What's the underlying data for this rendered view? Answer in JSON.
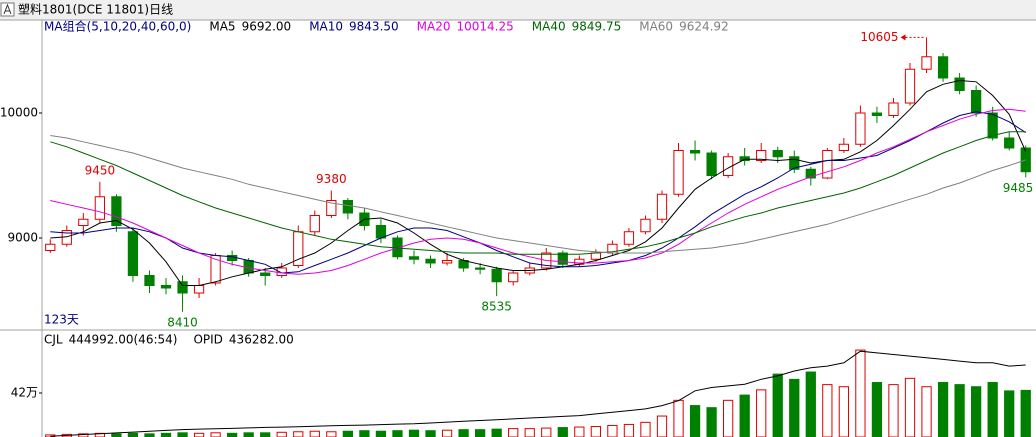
{
  "window_title": "塑料1801(DCE 11801)日线",
  "chart_data": [
    {
      "type": "candlestick",
      "legend_title": "MA组合(5,10,20,40,60,0)",
      "period_label": "123天",
      "ylim": [
        8280,
        10744
      ],
      "yticks": [
        9000,
        10000
      ],
      "up_color": "#e00000",
      "down_color": "#008000",
      "candles": [
        [
          8900,
          8990,
          8880,
          8950
        ],
        [
          8950,
          9100,
          8930,
          9060
        ],
        [
          9100,
          9200,
          9020,
          9150
        ],
        [
          9150,
          9450,
          9120,
          9330
        ],
        [
          9330,
          9350,
          9050,
          9100
        ],
        [
          9050,
          9080,
          8650,
          8700
        ],
        [
          8700,
          8740,
          8560,
          8620
        ],
        [
          8620,
          8680,
          8550,
          8600
        ],
        [
          8650,
          8700,
          8410,
          8560
        ],
        [
          8560,
          8680,
          8520,
          8620
        ],
        [
          8640,
          8880,
          8620,
          8860
        ],
        [
          8860,
          8900,
          8780,
          8820
        ],
        [
          8820,
          8840,
          8690,
          8720
        ],
        [
          8720,
          8760,
          8620,
          8700
        ],
        [
          8700,
          8800,
          8680,
          8760
        ],
        [
          8780,
          9100,
          8760,
          9050
        ],
        [
          9050,
          9220,
          9020,
          9180
        ],
        [
          9180,
          9380,
          9160,
          9300
        ],
        [
          9300,
          9320,
          9150,
          9200
        ],
        [
          9200,
          9240,
          9060,
          9100
        ],
        [
          9100,
          9150,
          8960,
          9000
        ],
        [
          9000,
          9020,
          8830,
          8850
        ],
        [
          8850,
          8900,
          8790,
          8830
        ],
        [
          8830,
          8860,
          8760,
          8800
        ],
        [
          8800,
          8880,
          8780,
          8820
        ],
        [
          8820,
          8840,
          8730,
          8760
        ],
        [
          8760,
          8800,
          8710,
          8750
        ],
        [
          8750,
          8770,
          8535,
          8650
        ],
        [
          8650,
          8740,
          8620,
          8720
        ],
        [
          8720,
          8800,
          8700,
          8760
        ],
        [
          8760,
          8920,
          8740,
          8880
        ],
        [
          8880,
          8900,
          8760,
          8790
        ],
        [
          8790,
          8860,
          8770,
          8830
        ],
        [
          8830,
          8910,
          8810,
          8880
        ],
        [
          8880,
          8980,
          8860,
          8950
        ],
        [
          8950,
          9080,
          8930,
          9050
        ],
        [
          9050,
          9180,
          9030,
          9150
        ],
        [
          9150,
          9380,
          9120,
          9350
        ],
        [
          9350,
          9760,
          9330,
          9700
        ],
        [
          9700,
          9780,
          9620,
          9680
        ],
        [
          9680,
          9700,
          9470,
          9500
        ],
        [
          9500,
          9680,
          9480,
          9650
        ],
        [
          9650,
          9720,
          9580,
          9620
        ],
        [
          9620,
          9760,
          9600,
          9700
        ],
        [
          9700,
          9730,
          9600,
          9650
        ],
        [
          9650,
          9700,
          9520,
          9550
        ],
        [
          9550,
          9570,
          9420,
          9480
        ],
        [
          9480,
          9720,
          9470,
          9700
        ],
        [
          9700,
          9800,
          9680,
          9750
        ],
        [
          9750,
          10060,
          9730,
          10000
        ],
        [
          10000,
          10050,
          9920,
          9980
        ],
        [
          9980,
          10120,
          9960,
          10080
        ],
        [
          10080,
          10400,
          10060,
          10350
        ],
        [
          10350,
          10605,
          10320,
          10450
        ],
        [
          10450,
          10480,
          10250,
          10280
        ],
        [
          10280,
          10320,
          10150,
          10180
        ],
        [
          10180,
          10220,
          9970,
          10000
        ],
        [
          10000,
          10050,
          9780,
          9800
        ],
        [
          9800,
          9850,
          9700,
          9720
        ],
        [
          9720,
          9740,
          9485,
          9530
        ]
      ],
      "series": [
        {
          "name": "MA5",
          "label": "9692.00",
          "color": "#000000",
          "values": [
            9000,
            9010,
            9050,
            9120,
            9140,
            9070,
            8960,
            8810,
            8620,
            8620,
            8650,
            8690,
            8720,
            8750,
            8770,
            8830,
            8880,
            8960,
            9060,
            9150,
            9160,
            9120,
            9040,
            8950,
            8870,
            8820,
            8790,
            8760,
            8740,
            8740,
            8750,
            8770,
            8790,
            8820,
            8860,
            8900,
            8970,
            9080,
            9240,
            9390,
            9480,
            9560,
            9630,
            9630,
            9620,
            9630,
            9600,
            9620,
            9630,
            9690,
            9780,
            9900,
            10030,
            10170,
            10230,
            10260,
            10250,
            10140,
            9990,
            9692
          ]
        },
        {
          "name": "MA10",
          "label": "9843.50",
          "color": "#000080",
          "values": [
            9050,
            9040,
            9040,
            9060,
            9080,
            9080,
            9050,
            9000,
            8920,
            8880,
            8860,
            8850,
            8820,
            8790,
            8720,
            8730,
            8780,
            8830,
            8880,
            8940,
            9000,
            9050,
            9080,
            9080,
            9060,
            9010,
            8960,
            8900,
            8850,
            8800,
            8780,
            8770,
            8770,
            8780,
            8800,
            8820,
            8860,
            8920,
            9000,
            9090,
            9190,
            9270,
            9350,
            9410,
            9480,
            9560,
            9590,
            9620,
            9620,
            9640,
            9660,
            9720,
            9780,
            9850,
            9920,
            9980,
            10010,
            9990,
            9930,
            9843.5
          ]
        },
        {
          "name": "MA20",
          "label": "10014.25",
          "color": "#e000e0",
          "values": [
            9300,
            9270,
            9240,
            9210,
            9170,
            9120,
            9060,
            9000,
            8940,
            8880,
            8830,
            8790,
            8760,
            8740,
            8720,
            8710,
            8720,
            8740,
            8780,
            8830,
            8880,
            8920,
            8960,
            8990,
            9000,
            8990,
            8960,
            8920,
            8880,
            8850,
            8820,
            8810,
            8800,
            8800,
            8810,
            8820,
            8840,
            8880,
            8950,
            9040,
            9120,
            9200,
            9270,
            9330,
            9390,
            9440,
            9490,
            9530,
            9570,
            9620,
            9680,
            9730,
            9790,
            9850,
            9900,
            9950,
            9990,
            10020,
            10030,
            10014.25
          ]
        },
        {
          "name": "MA40",
          "label": "9849.75",
          "color": "#006400",
          "values": [
            9770,
            9730,
            9680,
            9630,
            9580,
            9520,
            9460,
            9400,
            9340,
            9290,
            9240,
            9200,
            9160,
            9120,
            9080,
            9050,
            9020,
            8990,
            8970,
            8950,
            8930,
            8920,
            8910,
            8900,
            8890,
            8880,
            8880,
            8880,
            8870,
            8870,
            8870,
            8870,
            8870,
            8880,
            8890,
            8910,
            8930,
            8960,
            9000,
            9040,
            9090,
            9130,
            9170,
            9200,
            9240,
            9270,
            9300,
            9330,
            9360,
            9400,
            9450,
            9500,
            9560,
            9620,
            9680,
            9730,
            9780,
            9820,
            9850,
            9849.75
          ]
        },
        {
          "name": "MA60",
          "label": "9624.92",
          "color": "#808080",
          "values": [
            9820,
            9800,
            9770,
            9740,
            9710,
            9680,
            9640,
            9600,
            9560,
            9530,
            9500,
            9470,
            9430,
            9400,
            9370,
            9340,
            9310,
            9280,
            9260,
            9240,
            9210,
            9180,
            9150,
            9120,
            9090,
            9060,
            9030,
            9000,
            8980,
            8960,
            8940,
            8920,
            8900,
            8890,
            8880,
            8880,
            8880,
            8890,
            8900,
            8910,
            8920,
            8940,
            8960,
            8990,
            9020,
            9050,
            9080,
            9110,
            9150,
            9190,
            9230,
            9270,
            9310,
            9350,
            9400,
            9440,
            9490,
            9540,
            9580,
            9624.92
          ]
        }
      ],
      "extreme_labels": [
        9450,
        9380,
        8410,
        8535,
        10605,
        9485
      ]
    },
    {
      "type": "volume",
      "ylim": [
        0,
        945000
      ],
      "yticks": [
        {
          "value": 420000,
          "label": "42万"
        }
      ],
      "y2lim": [
        0,
        600000
      ],
      "series": [
        {
          "name": "CJL",
          "label": "444992.00(46:54)",
          "values": [
            20000,
            25000,
            30000,
            35000,
            30000,
            35000,
            30000,
            35000,
            40000,
            35000,
            40000,
            35000,
            40000,
            40000,
            45000,
            50000,
            55000,
            50000,
            55000,
            60000,
            55000,
            60000,
            65000,
            60000,
            65000,
            70000,
            70000,
            75000,
            80000,
            80000,
            85000,
            90000,
            95000,
            100000,
            110000,
            120000,
            140000,
            200000,
            350000,
            300000,
            280000,
            350000,
            400000,
            450000,
            600000,
            550000,
            620000,
            500000,
            480000,
            830000,
            520000,
            500000,
            560000,
            480000,
            520000,
            500000,
            480000,
            520000,
            440000,
            444992
          ]
        },
        {
          "name": "OPID",
          "label": "436282.00",
          "axis": "y2",
          "color": "#000000",
          "values": [
            5000,
            10000,
            15000,
            20000,
            25000,
            30000,
            35000,
            40000,
            45000,
            48000,
            50000,
            52000,
            55000,
            58000,
            60000,
            62000,
            65000,
            68000,
            70000,
            72000,
            75000,
            78000,
            80000,
            85000,
            90000,
            95000,
            100000,
            105000,
            110000,
            115000,
            120000,
            125000,
            130000,
            140000,
            150000,
            160000,
            170000,
            190000,
            220000,
            280000,
            300000,
            310000,
            320000,
            350000,
            370000,
            400000,
            420000,
            430000,
            450000,
            520000,
            510000,
            500000,
            490000,
            480000,
            470000,
            460000,
            450000,
            450000,
            430000,
            436282
          ]
        }
      ]
    }
  ]
}
